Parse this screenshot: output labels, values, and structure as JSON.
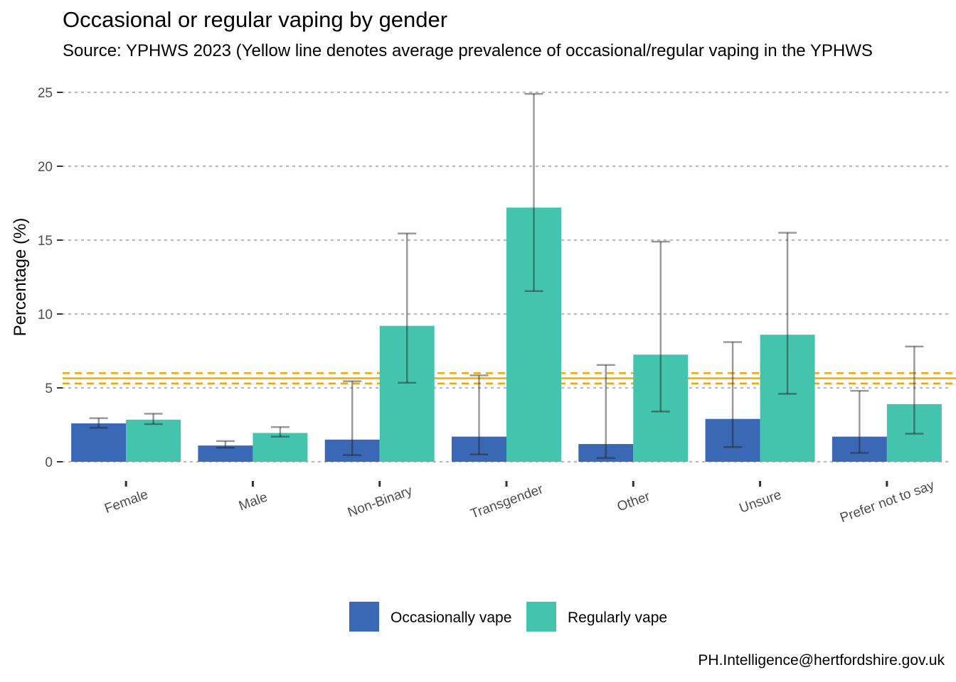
{
  "chart_data": {
    "type": "bar",
    "title": "Occasional or regular vaping by gender",
    "subtitle": "Source: YPHWS 2023 (Yellow line denotes average prevalence of occasional/regular vaping in the YPHWS",
    "xlabel": "",
    "ylabel": "Percentage (%)",
    "ylim": [
      0,
      25
    ],
    "yticks": [
      0,
      5,
      10,
      15,
      20,
      25
    ],
    "categories": [
      "Female",
      "Male",
      "Non-Binary",
      "Transgender",
      "Other",
      "Unsure",
      "Prefer not to say"
    ],
    "series": [
      {
        "name": "Occasionally vape",
        "color": "#3a68b4",
        "values": [
          2.6,
          1.1,
          1.5,
          1.7,
          1.2,
          2.9,
          1.7
        ],
        "ci_lower": [
          2.3,
          0.95,
          0.45,
          0.5,
          0.25,
          1.0,
          0.6
        ],
        "ci_upper": [
          2.95,
          1.4,
          5.45,
          5.85,
          6.55,
          8.1,
          4.8
        ]
      },
      {
        "name": "Regularly vape",
        "color": "#44c4ad",
        "values": [
          2.85,
          1.95,
          9.2,
          17.2,
          7.25,
          8.6,
          3.9
        ],
        "ci_lower": [
          2.55,
          1.7,
          5.35,
          11.55,
          3.4,
          4.6,
          1.9
        ],
        "ci_upper": [
          3.25,
          2.35,
          15.45,
          24.9,
          14.9,
          15.5,
          7.8
        ]
      }
    ],
    "reference_line": {
      "color": "#f5a800",
      "value": 5.65,
      "ci_lower": 5.3,
      "ci_upper": 6.0
    },
    "grid": true,
    "legend_position": "bottom"
  },
  "footer": "PH.Intelligence@hertfordshire.gov.uk"
}
